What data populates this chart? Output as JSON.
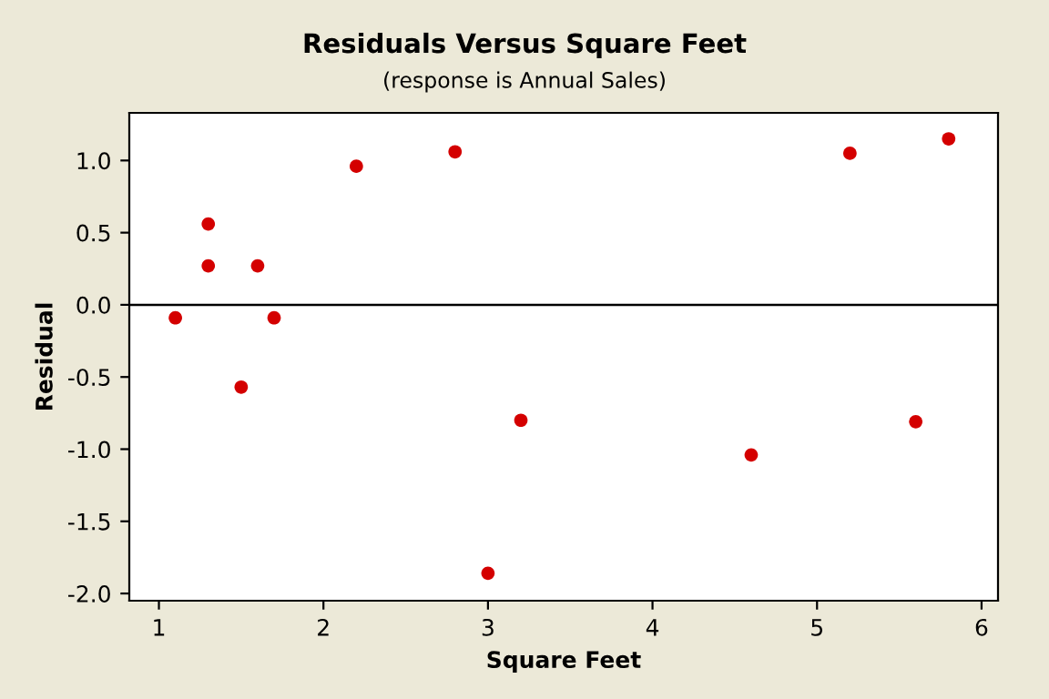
{
  "chart_data": {
    "type": "scatter",
    "title": "Residuals Versus Square Feet",
    "subtitle": "(response is Annual Sales)",
    "xlabel": "Square Feet",
    "ylabel": "Residual",
    "x": [
      1.1,
      1.3,
      1.3,
      1.5,
      1.6,
      1.7,
      2.2,
      2.8,
      3.0,
      3.2,
      4.6,
      5.2,
      5.6,
      5.8
    ],
    "series": [
      {
        "color": "#d40000",
        "values": [
          -0.09,
          0.56,
          0.27,
          -0.57,
          0.27,
          -0.09,
          0.96,
          1.06,
          -1.86,
          -0.8,
          -1.04,
          1.05,
          -0.81,
          1.15
        ]
      }
    ],
    "xlim": [
      0.82,
      6.1
    ],
    "ylim": [
      -2.05,
      1.33
    ],
    "xticks": [
      1,
      2,
      3,
      4,
      5,
      6
    ],
    "yticks": [
      {
        "value": -2,
        "label": "-2.0"
      },
      {
        "value": -1.5,
        "label": "-1.5"
      },
      {
        "value": -1,
        "label": "-1.0"
      },
      {
        "value": -0.5,
        "label": "-0.5"
      },
      {
        "value": 0,
        "label": "0.0"
      },
      {
        "value": 0.5,
        "label": "0.5"
      },
      {
        "value": 1,
        "label": "1.0"
      }
    ],
    "ref_lines": [
      {
        "axis": "y",
        "value": 0,
        "color": "#000000"
      }
    ],
    "marker": "circle",
    "grid": false,
    "legend": false
  }
}
